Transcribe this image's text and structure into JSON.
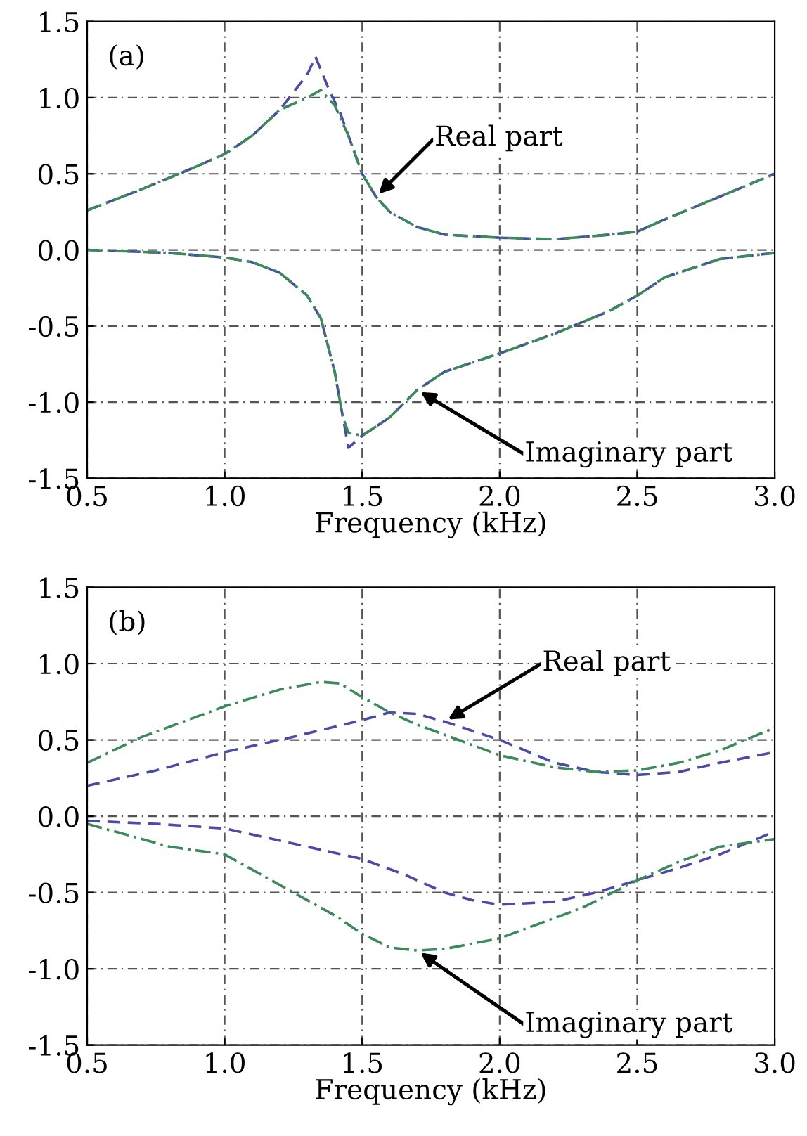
{
  "chart_data": [
    {
      "type": "line",
      "xlabel": "Frequency (kHz)",
      "xlim": [
        0.5,
        3.0
      ],
      "ylim": [
        -1.5,
        1.5
      ],
      "xticks": [
        {
          "value": 0.5,
          "label": "0.5"
        },
        {
          "value": 1.0,
          "label": "1.0"
        },
        {
          "value": 1.5,
          "label": "1.5"
        },
        {
          "value": 2.0,
          "label": "2.0"
        },
        {
          "value": 2.5,
          "label": "2.5"
        },
        {
          "value": 3.0,
          "label": "3.0"
        }
      ],
      "yticks": [
        {
          "value": -1.5,
          "label": "-1.5"
        },
        {
          "value": -1.0,
          "label": "-1.0"
        },
        {
          "value": -0.5,
          "label": "-0.5"
        },
        {
          "value": 0.0,
          "label": "0.0"
        },
        {
          "value": 0.5,
          "label": "0.5"
        },
        {
          "value": 1.0,
          "label": "1.0"
        },
        {
          "value": 1.5,
          "label": "1.5"
        }
      ],
      "grid": true,
      "legend": false,
      "annotations": [
        "(a)",
        {
          "text": "Real part",
          "x": 1.55,
          "y": 0.35
        },
        {
          "text": "Imaginary part",
          "x": 1.7,
          "y": -0.92
        }
      ],
      "series": [
        {
          "color": "#4a4aa8",
          "line_style": "dashed",
          "x": [
            0.5,
            0.7,
            0.9,
            1.0,
            1.1,
            1.2,
            1.3,
            1.33,
            1.38,
            1.42,
            1.45,
            1.5,
            1.55,
            1.6,
            1.7,
            1.8,
            2.0,
            2.2,
            2.4,
            2.5,
            2.6,
            2.8,
            3.0
          ],
          "values": [
            0.26,
            0.4,
            0.55,
            0.63,
            0.75,
            0.92,
            1.15,
            1.27,
            1.05,
            0.9,
            0.75,
            0.5,
            0.35,
            0.25,
            0.15,
            0.1,
            0.08,
            0.07,
            0.1,
            0.12,
            0.2,
            0.35,
            0.5
          ]
        },
        {
          "color": "#3a8a5a",
          "line_style": "dashdot",
          "x": [
            0.5,
            0.7,
            0.9,
            1.0,
            1.1,
            1.2,
            1.3,
            1.35,
            1.4,
            1.45,
            1.5,
            1.55,
            1.6,
            1.7,
            1.8,
            2.0,
            2.2,
            2.4,
            2.5,
            2.6,
            2.8,
            3.0
          ],
          "values": [
            0.26,
            0.4,
            0.55,
            0.63,
            0.75,
            0.92,
            1.0,
            1.05,
            0.95,
            0.75,
            0.5,
            0.35,
            0.25,
            0.15,
            0.1,
            0.08,
            0.07,
            0.1,
            0.12,
            0.2,
            0.35,
            0.5
          ]
        },
        {
          "color": "#4a4aa8",
          "line_style": "dashed",
          "x": [
            0.5,
            0.8,
            1.0,
            1.1,
            1.2,
            1.3,
            1.35,
            1.4,
            1.43,
            1.45,
            1.5,
            1.6,
            1.7,
            1.8,
            2.0,
            2.2,
            2.4,
            2.5,
            2.6,
            2.8,
            3.0
          ],
          "values": [
            0.0,
            -0.02,
            -0.05,
            -0.08,
            -0.15,
            -0.3,
            -0.45,
            -0.8,
            -1.1,
            -1.3,
            -1.22,
            -1.1,
            -0.92,
            -0.8,
            -0.68,
            -0.55,
            -0.4,
            -0.3,
            -0.18,
            -0.06,
            -0.02
          ]
        },
        {
          "color": "#3a8a5a",
          "line_style": "dashdot",
          "x": [
            0.5,
            0.8,
            1.0,
            1.1,
            1.2,
            1.3,
            1.35,
            1.4,
            1.43,
            1.45,
            1.5,
            1.6,
            1.7,
            1.8,
            2.0,
            2.2,
            2.4,
            2.5,
            2.6,
            2.8,
            3.0
          ],
          "values": [
            0.0,
            -0.02,
            -0.05,
            -0.08,
            -0.15,
            -0.3,
            -0.45,
            -0.8,
            -1.1,
            -1.2,
            -1.22,
            -1.1,
            -0.92,
            -0.8,
            -0.68,
            -0.55,
            -0.4,
            -0.3,
            -0.18,
            -0.06,
            -0.02
          ]
        }
      ]
    },
    {
      "type": "line",
      "xlabel": "Frequency (kHz)",
      "xlim": [
        0.5,
        3.0
      ],
      "ylim": [
        -1.5,
        1.5
      ],
      "xticks": [
        {
          "value": 0.5,
          "label": "0.5"
        },
        {
          "value": 1.0,
          "label": "1.0"
        },
        {
          "value": 1.5,
          "label": "1.5"
        },
        {
          "value": 2.0,
          "label": "2.0"
        },
        {
          "value": 2.5,
          "label": "2.5"
        },
        {
          "value": 3.0,
          "label": "3.0"
        }
      ],
      "yticks": [
        {
          "value": -1.5,
          "label": "-1.5"
        },
        {
          "value": -1.0,
          "label": "-1.0"
        },
        {
          "value": -0.5,
          "label": "-0.5"
        },
        {
          "value": 0.0,
          "label": "0.0"
        },
        {
          "value": 0.5,
          "label": "0.5"
        },
        {
          "value": 1.0,
          "label": "1.0"
        },
        {
          "value": 1.5,
          "label": "1.5"
        }
      ],
      "grid": true,
      "legend": false,
      "annotations": [
        "(b)",
        {
          "text": "Real part",
          "x": 1.8,
          "y": 0.62
        },
        {
          "text": "Imaginary part",
          "x": 1.7,
          "y": -0.88
        }
      ],
      "series": [
        {
          "color": "#4a4aa8",
          "line_style": "dashed",
          "x": [
            0.5,
            0.75,
            1.0,
            1.25,
            1.5,
            1.6,
            1.7,
            1.8,
            2.0,
            2.2,
            2.35,
            2.5,
            2.65,
            2.8,
            3.0
          ],
          "values": [
            0.2,
            0.3,
            0.42,
            0.52,
            0.63,
            0.68,
            0.67,
            0.62,
            0.5,
            0.35,
            0.29,
            0.27,
            0.29,
            0.35,
            0.42
          ]
        },
        {
          "color": "#3a8a5a",
          "line_style": "dashdot",
          "x": [
            0.5,
            0.7,
            1.0,
            1.2,
            1.35,
            1.42,
            1.5,
            1.6,
            1.7,
            1.85,
            2.0,
            2.2,
            2.35,
            2.5,
            2.65,
            2.8,
            3.0
          ],
          "values": [
            0.35,
            0.52,
            0.72,
            0.83,
            0.88,
            0.87,
            0.78,
            0.68,
            0.6,
            0.5,
            0.4,
            0.32,
            0.29,
            0.3,
            0.35,
            0.43,
            0.58
          ]
        },
        {
          "color": "#4a4aa8",
          "line_style": "dashed",
          "x": [
            0.5,
            0.75,
            1.0,
            1.3,
            1.5,
            1.65,
            1.8,
            1.9,
            2.0,
            2.2,
            2.35,
            2.5,
            2.65,
            2.8,
            3.0
          ],
          "values": [
            -0.03,
            -0.05,
            -0.08,
            -0.2,
            -0.28,
            -0.38,
            -0.5,
            -0.55,
            -0.58,
            -0.56,
            -0.5,
            -0.42,
            -0.34,
            -0.25,
            -0.1
          ]
        },
        {
          "color": "#3a8a5a",
          "line_style": "dashdot",
          "x": [
            0.5,
            0.8,
            1.0,
            1.2,
            1.4,
            1.5,
            1.6,
            1.7,
            1.8,
            2.0,
            2.15,
            2.3,
            2.5,
            2.65,
            2.8,
            3.0
          ],
          "values": [
            -0.05,
            -0.2,
            -0.25,
            -0.45,
            -0.65,
            -0.77,
            -0.86,
            -0.88,
            -0.87,
            -0.8,
            -0.7,
            -0.6,
            -0.42,
            -0.3,
            -0.2,
            -0.15
          ]
        }
      ]
    }
  ]
}
